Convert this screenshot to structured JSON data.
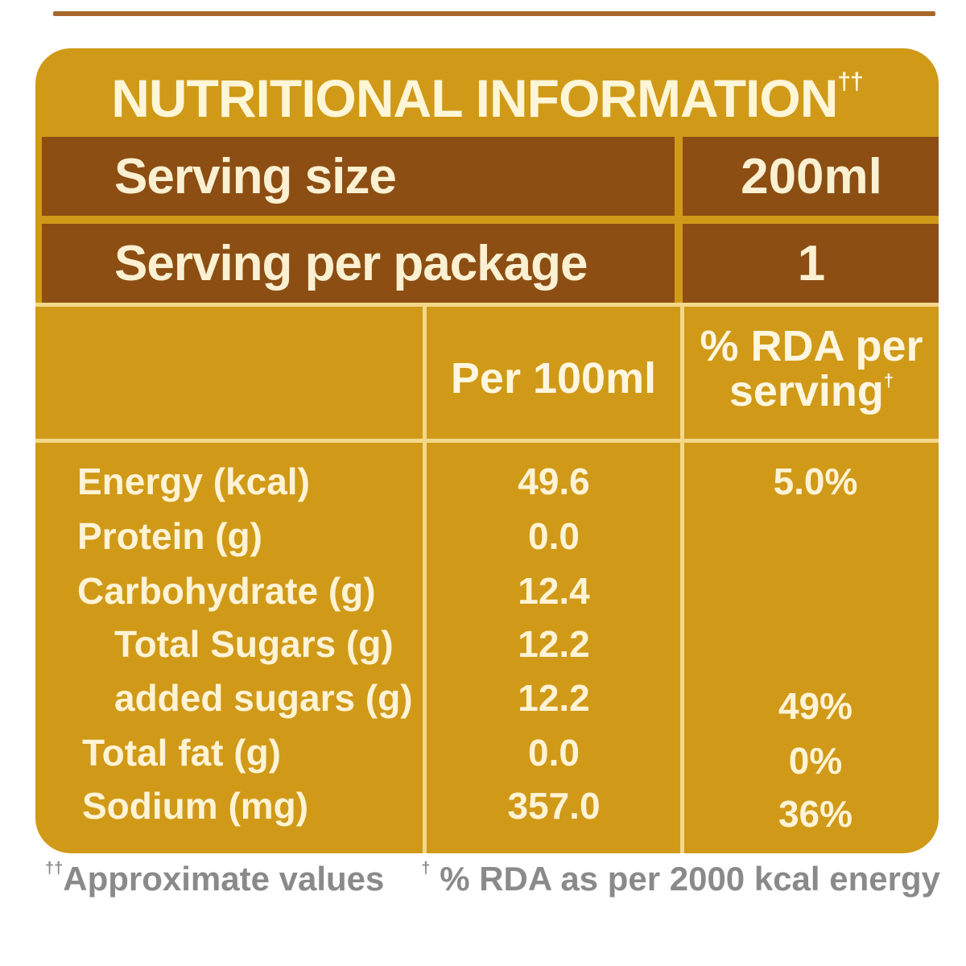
{
  "title": {
    "text": "NUTRITIONAL INFORMATION",
    "mark": "††"
  },
  "serving_size": {
    "label": "Serving size",
    "value": "200ml"
  },
  "servings_per_package": {
    "label": "Serving per package",
    "value": "1"
  },
  "columns": {
    "per_100ml": "Per 100ml",
    "rda_line1": "% RDA per",
    "rda_line2": "serving",
    "rda_mark": "†"
  },
  "nutrients": [
    {
      "label": "Energy (kcal)",
      "per_100ml": "49.6",
      "rda": "5.0%"
    },
    {
      "label": "Protein (g)",
      "per_100ml": "0.0",
      "rda": ""
    },
    {
      "label": "Carbohydrate (g)",
      "per_100ml": "12.4",
      "rda": ""
    },
    {
      "label": "Total Sugars (g)",
      "per_100ml": "12.2",
      "rda": ""
    },
    {
      "label": "added sugars (g)",
      "per_100ml": "12.2",
      "rda": "49%"
    },
    {
      "label": "Total fat (g)",
      "per_100ml": "0.0",
      "rda": "0%"
    },
    {
      "label": "Sodium (mg)",
      "per_100ml": "357.0",
      "rda": "36%"
    }
  ],
  "footnotes": {
    "approx_mark": "††",
    "approx_text": "Approximate values",
    "rda_mark": "†",
    "rda_text": " % RDA as per 2000 kcal energy"
  },
  "colors": {
    "panel": "#d09a18",
    "band": "#8c4e13",
    "text_light": "#fff3d6",
    "footnote": "#8a8a8a"
  }
}
